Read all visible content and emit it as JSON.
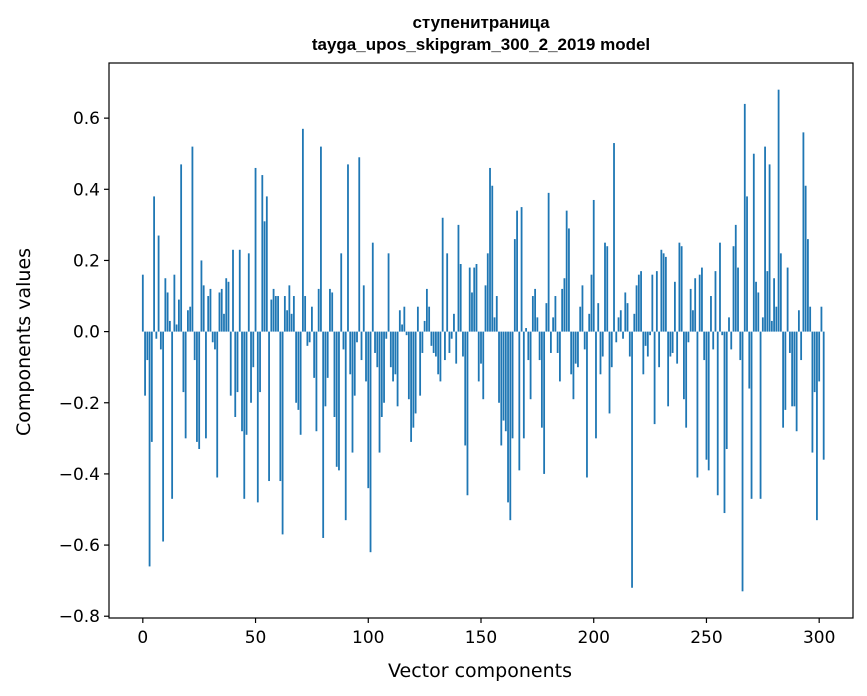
{
  "chart_data": {
    "type": "bar",
    "title": "ступенитраница",
    "subtitle": "tayga_upos_skipgram_300_2_2019 model",
    "xlabel": "Vector components",
    "ylabel": "Components values",
    "xlim": [
      -15,
      315
    ],
    "ylim": [
      -0.805,
      0.755
    ],
    "xticks": [
      0,
      50,
      100,
      150,
      200,
      250,
      300
    ],
    "xtick_labels": [
      "0",
      "50",
      "100",
      "150",
      "200",
      "250",
      "300"
    ],
    "yticks": [
      -0.8,
      -0.6,
      -0.4,
      -0.2,
      0.0,
      0.2,
      0.4,
      0.6
    ],
    "ytick_labels": [
      "−0.8",
      "−0.6",
      "−0.4",
      "−0.2",
      "0.0",
      "0.2",
      "0.4",
      "0.6"
    ],
    "bar_color": "#1f77b4",
    "grid": false,
    "values": [
      0.16,
      -0.18,
      -0.08,
      -0.66,
      -0.31,
      0.38,
      -0.02,
      0.27,
      -0.05,
      -0.59,
      0.15,
      0.11,
      0.03,
      -0.47,
      0.16,
      0.02,
      0.09,
      0.47,
      -0.17,
      -0.3,
      0.06,
      0.07,
      0.52,
      -0.08,
      -0.31,
      -0.33,
      0.2,
      0.13,
      -0.3,
      0.1,
      0.12,
      -0.03,
      -0.05,
      -0.41,
      0.11,
      0.12,
      0.05,
      0.15,
      0.14,
      -0.18,
      0.23,
      -0.24,
      -0.17,
      0.23,
      -0.28,
      -0.47,
      -0.29,
      0.22,
      -0.2,
      -0.1,
      0.46,
      -0.48,
      -0.17,
      0.44,
      0.31,
      0.38,
      -0.42,
      0.09,
      0.12,
      0.1,
      0.1,
      -0.42,
      -0.57,
      0.1,
      0.06,
      0.13,
      0.05,
      0.1,
      -0.2,
      -0.22,
      -0.29,
      0.57,
      0.1,
      -0.04,
      -0.03,
      0.07,
      -0.13,
      -0.28,
      0.12,
      0.52,
      -0.58,
      -0.21,
      -0.13,
      0.12,
      0.11,
      -0.24,
      -0.38,
      -0.39,
      0.22,
      -0.05,
      -0.53,
      0.47,
      -0.12,
      -0.34,
      -0.18,
      -0.03,
      0.49,
      -0.08,
      0.13,
      -0.14,
      -0.44,
      -0.62,
      0.25,
      -0.06,
      -0.1,
      -0.34,
      -0.24,
      -0.2,
      -0.02,
      0.22,
      -0.1,
      -0.14,
      -0.12,
      -0.21,
      0.06,
      0.02,
      0.07,
      -0.01,
      -0.19,
      -0.31,
      -0.27,
      -0.23,
      0.07,
      -0.18,
      -0.06,
      0.03,
      0.12,
      0.07,
      -0.04,
      -0.06,
      -0.07,
      -0.12,
      -0.14,
      0.32,
      -0.08,
      0.22,
      -0.06,
      -0.02,
      0.05,
      -0.09,
      0.3,
      0.19,
      -0.07,
      -0.32,
      -0.46,
      0.18,
      0.11,
      0.18,
      0.19,
      -0.14,
      -0.09,
      -0.19,
      0.13,
      0.22,
      0.46,
      0.41,
      0.04,
      0.1,
      -0.2,
      -0.32,
      -0.25,
      -0.28,
      -0.48,
      -0.53,
      -0.3,
      0.26,
      0.34,
      -0.39,
      0.35,
      -0.3,
      0.01,
      -0.08,
      -0.19,
      0.1,
      0.12,
      0.04,
      -0.08,
      -0.27,
      -0.4,
      0.08,
      0.39,
      -0.06,
      0.04,
      0.1,
      -0.06,
      -0.14,
      0.12,
      0.15,
      0.34,
      0.29,
      -0.12,
      -0.19,
      -0.09,
      -0.1,
      0.07,
      0.13,
      -0.05,
      -0.41,
      0.05,
      0.16,
      0.37,
      -0.3,
      0.08,
      -0.12,
      -0.07,
      0.25,
      0.24,
      -0.23,
      -0.1,
      0.53,
      -0.03,
      0.04,
      0.06,
      -0.02,
      0.11,
      0.08,
      -0.07,
      -0.72,
      0.05,
      0.13,
      0.16,
      0.17,
      -0.12,
      -0.04,
      -0.07,
      -0.01,
      0.16,
      -0.26,
      0.17,
      -0.1,
      0.23,
      0.22,
      0.21,
      -0.21,
      -0.07,
      -0.06,
      0.14,
      -0.09,
      0.25,
      0.24,
      -0.19,
      -0.27,
      -0.03,
      0.12,
      0.06,
      0.15,
      -0.41,
      0.16,
      0.18,
      -0.08,
      -0.36,
      -0.39,
      0.1,
      -0.05,
      0.17,
      -0.46,
      0.25,
      -0.01,
      -0.51,
      -0.33,
      0.04,
      -0.05,
      0.24,
      0.3,
      0.18,
      -0.08,
      -0.73,
      0.64,
      0.38,
      -0.16,
      -0.47,
      0.5,
      0.14,
      0.11,
      -0.47,
      0.04,
      0.52,
      0.17,
      0.47,
      0.03,
      0.15,
      0.07,
      0.68,
      0.22,
      -0.27,
      -0.22,
      0.18,
      -0.06,
      -0.21,
      -0.21,
      -0.28,
      0.06,
      -0.08,
      0.56,
      0.41,
      0.26,
      0.07,
      -0.34,
      -0.17,
      -0.53,
      -0.14,
      0.07,
      -0.36
    ]
  }
}
